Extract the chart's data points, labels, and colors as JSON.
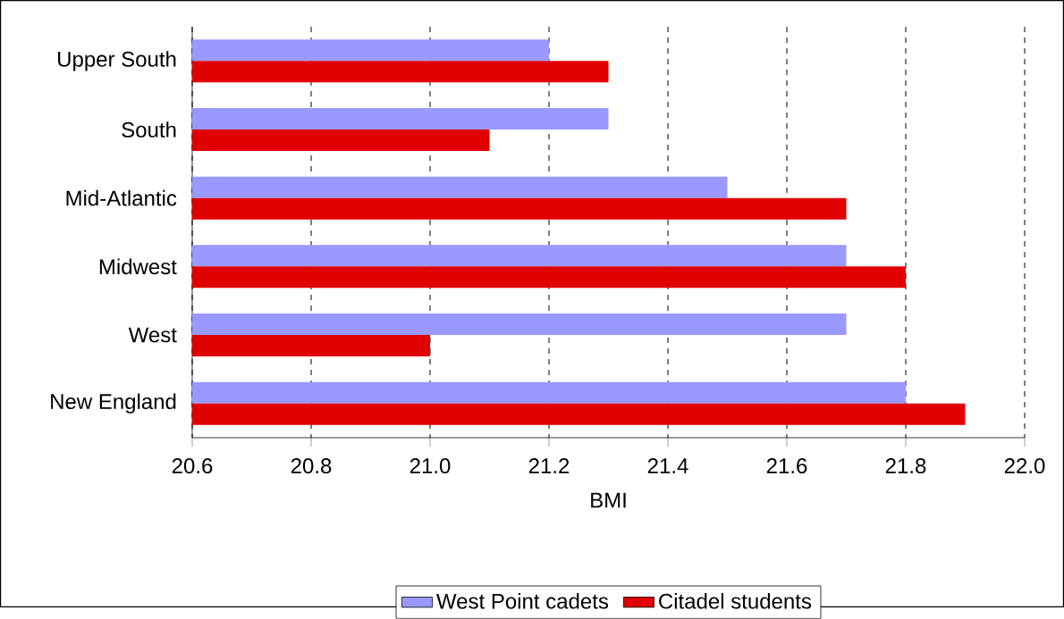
{
  "chart_data": {
    "type": "bar",
    "orientation": "horizontal",
    "xlabel": "BMI",
    "categories": [
      "Upper South",
      "South",
      "Mid-Atlantic",
      "Midwest",
      "West",
      "New England"
    ],
    "series": [
      {
        "name": "West Point cadets",
        "color": "#9999ff",
        "values": [
          21.2,
          21.3,
          21.5,
          21.7,
          21.7,
          21.8
        ]
      },
      {
        "name": "Citadel students",
        "color": "#e00000",
        "values": [
          21.3,
          21.1,
          21.7,
          21.8,
          21.0,
          21.9
        ]
      }
    ],
    "xlim": [
      20.6,
      22.0
    ],
    "xticks": [
      {
        "value": 20.6,
        "label": "20.6"
      },
      {
        "value": 20.8,
        "label": "20.8"
      },
      {
        "value": 21.0,
        "label": "21.0"
      },
      {
        "value": 21.2,
        "label": "21.2"
      },
      {
        "value": 21.4,
        "label": "21.4"
      },
      {
        "value": 21.6,
        "label": "21.6"
      },
      {
        "value": 21.8,
        "label": "21.8"
      },
      {
        "value": 22.0,
        "label": "22.0"
      }
    ],
    "grid": "x",
    "legend": "bottom"
  }
}
